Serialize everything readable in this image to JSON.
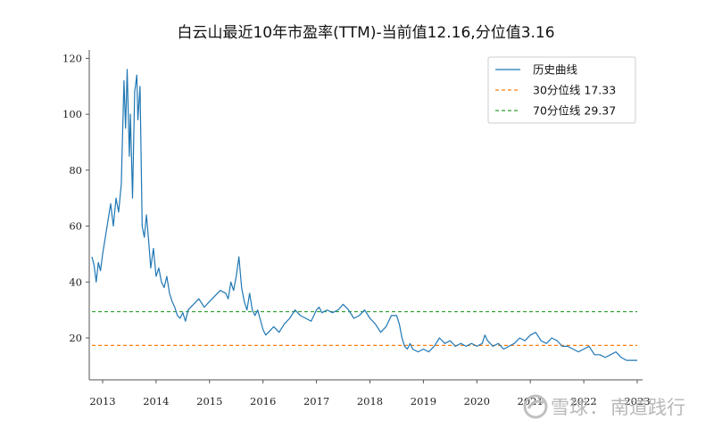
{
  "chart_data": {
    "type": "line",
    "title": "白云山最近10年市盈率(TTM)-当前值12.16,分位值3.16",
    "xlabel": "",
    "ylabel": "",
    "xlim": [
      2012.75,
      2023.1
    ],
    "ylim": [
      5,
      123
    ],
    "x_ticks": [
      "2013",
      "2014",
      "2015",
      "2016",
      "2017",
      "2018",
      "2019",
      "2020",
      "2021",
      "2022",
      "2023"
    ],
    "y_ticks": [
      "20",
      "40",
      "60",
      "80",
      "100",
      "120"
    ],
    "grid": false,
    "legend_position": "top-right",
    "series": [
      {
        "name": "历史曲线",
        "color": "#1f77b4",
        "style": "solid",
        "x": [
          2012.8,
          2012.84,
          2012.88,
          2012.92,
          2012.96,
          2013.0,
          2013.05,
          2013.1,
          2013.15,
          2013.2,
          2013.25,
          2013.3,
          2013.35,
          2013.4,
          2013.43,
          2013.46,
          2013.5,
          2013.52,
          2013.56,
          2013.6,
          2013.64,
          2013.66,
          2013.7,
          2013.74,
          2013.78,
          2013.82,
          2013.86,
          2013.9,
          2013.95,
          2014.0,
          2014.05,
          2014.1,
          2014.15,
          2014.2,
          2014.25,
          2014.3,
          2014.35,
          2014.4,
          2014.45,
          2014.5,
          2014.55,
          2014.6,
          2014.7,
          2014.8,
          2014.9,
          2015.0,
          2015.1,
          2015.2,
          2015.3,
          2015.35,
          2015.4,
          2015.45,
          2015.5,
          2015.55,
          2015.6,
          2015.65,
          2015.7,
          2015.75,
          2015.8,
          2015.85,
          2015.9,
          2016.0,
          2016.05,
          2016.1,
          2016.15,
          2016.2,
          2016.3,
          2016.4,
          2016.5,
          2016.6,
          2016.7,
          2016.8,
          2016.9,
          2017.0,
          2017.05,
          2017.1,
          2017.2,
          2017.3,
          2017.4,
          2017.5,
          2017.6,
          2017.7,
          2017.8,
          2017.9,
          2018.0,
          2018.1,
          2018.2,
          2018.3,
          2018.35,
          2018.4,
          2018.5,
          2018.55,
          2018.6,
          2018.65,
          2018.7,
          2018.75,
          2018.8,
          2018.9,
          2019.0,
          2019.1,
          2019.2,
          2019.3,
          2019.4,
          2019.5,
          2019.6,
          2019.7,
          2019.8,
          2019.9,
          2020.0,
          2020.1,
          2020.15,
          2020.2,
          2020.3,
          2020.4,
          2020.5,
          2020.6,
          2020.7,
          2020.8,
          2020.9,
          2021.0,
          2021.1,
          2021.2,
          2021.3,
          2021.4,
          2021.5,
          2021.6,
          2021.7,
          2021.8,
          2021.9,
          2022.0,
          2022.1,
          2022.2,
          2022.3,
          2022.4,
          2022.5,
          2022.6,
          2022.7,
          2022.8,
          2022.9,
          2023.0
        ],
        "y": [
          49,
          46,
          40,
          47,
          44,
          50,
          56,
          62,
          68,
          60,
          70,
          65,
          75,
          112,
          95,
          116,
          85,
          100,
          70,
          108,
          114,
          98,
          110,
          60,
          56,
          64,
          55,
          45,
          52,
          42,
          45,
          40,
          38,
          42,
          36,
          33,
          31,
          28,
          27,
          29,
          26,
          30,
          32,
          34,
          31,
          33,
          35,
          37,
          36,
          34,
          40,
          37,
          42,
          49,
          38,
          33,
          30,
          36,
          30,
          28,
          30,
          23,
          21,
          22,
          23,
          24,
          22,
          25,
          27,
          30,
          28,
          27,
          26,
          30,
          31,
          29,
          30,
          29,
          30,
          32,
          30,
          27,
          28,
          30,
          27,
          25,
          22,
          24,
          26,
          28,
          28,
          25,
          20,
          17,
          16,
          18,
          16,
          15,
          16,
          15,
          17,
          20,
          18,
          19,
          17,
          18,
          17,
          18,
          17,
          18,
          21,
          19,
          17,
          18,
          16,
          17,
          18,
          20,
          19,
          21,
          22,
          19,
          18,
          20,
          19,
          17,
          17,
          16,
          15,
          16,
          17,
          14,
          14,
          13,
          14,
          15,
          13,
          12,
          12,
          12
        ]
      },
      {
        "name": "30分位线 17.33",
        "color": "#ff7f0e",
        "style": "dashed",
        "value": 17.33
      },
      {
        "name": "70分位线 29.37",
        "color": "#2ca02c",
        "style": "dashed",
        "value": 29.37
      }
    ]
  },
  "watermark": {
    "brand": "雪球",
    "separator": "：",
    "author": "南道践行"
  }
}
